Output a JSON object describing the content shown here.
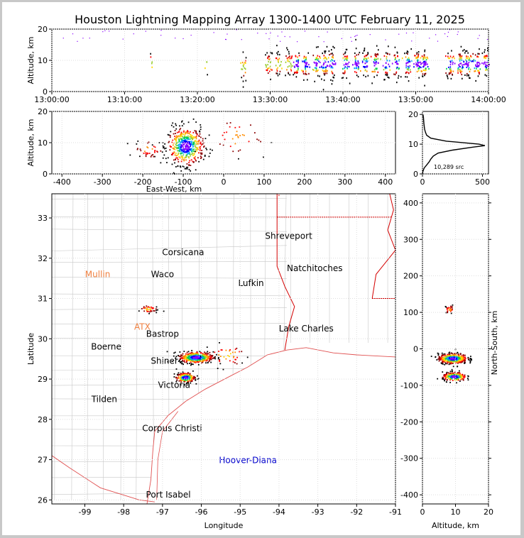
{
  "title": "Houston Lightning Mapping Array 1300-1400 UTC February 11, 2025",
  "colors": {
    "density": [
      "#8a00ff",
      "#0000ff",
      "#00a0ff",
      "#00d050",
      "#9acd32",
      "#ffd700",
      "#ff8c00",
      "#ff0000",
      "#8b0000",
      "#000000"
    ],
    "state_border": "#d40000",
    "coast": "#e05050",
    "county": "#c8c8c8",
    "grid": "#dddddd",
    "special_city": "#f08040",
    "highlight_city": "#0000cc"
  },
  "chart_data": [
    {
      "name": "altitude-time",
      "type": "scatter",
      "xlabel": "",
      "ylabel": "Altitude, km",
      "x_ticks": [
        "13:00:00",
        "13:10:00",
        "13:20:00",
        "13:30:00",
        "13:40:00",
        "13:50:00",
        "14:00:00"
      ],
      "x_range_minutes": [
        0,
        60
      ],
      "ylim": [
        0,
        20
      ],
      "y_ticks": [
        0,
        10,
        20
      ],
      "activity_bursts_minutes": [
        {
          "t": 13.6,
          "alt": 9,
          "n": 5
        },
        {
          "t": 21.5,
          "alt": 9,
          "n": 4
        },
        {
          "t": 26.3,
          "alt": 8,
          "n": 20
        },
        {
          "t": 29.8,
          "alt": 9,
          "n": 30
        },
        {
          "t": 31.0,
          "alt": 9,
          "n": 25
        },
        {
          "t": 32.5,
          "alt": 9,
          "n": 30
        },
        {
          "t": 33.5,
          "alt": 9,
          "n": 35
        },
        {
          "t": 34.8,
          "alt": 9,
          "n": 40
        },
        {
          "t": 36.3,
          "alt": 9,
          "n": 40
        },
        {
          "t": 37.5,
          "alt": 9,
          "n": 45
        },
        {
          "t": 38.5,
          "alt": 9,
          "n": 35
        },
        {
          "t": 40.3,
          "alt": 9,
          "n": 40
        },
        {
          "t": 41.8,
          "alt": 9,
          "n": 40
        },
        {
          "t": 43.0,
          "alt": 9,
          "n": 40
        },
        {
          "t": 44.5,
          "alt": 9,
          "n": 40
        },
        {
          "t": 46.0,
          "alt": 9,
          "n": 35
        },
        {
          "t": 47.3,
          "alt": 9,
          "n": 40
        },
        {
          "t": 48.8,
          "alt": 9,
          "n": 40
        },
        {
          "t": 50.2,
          "alt": 9,
          "n": 45
        },
        {
          "t": 51.2,
          "alt": 9,
          "n": 55
        },
        {
          "t": 54.7,
          "alt": 9,
          "n": 40
        },
        {
          "t": 56.0,
          "alt": 9,
          "n": 40
        },
        {
          "t": 57.0,
          "alt": 9,
          "n": 45
        },
        {
          "t": 58.3,
          "alt": 9,
          "n": 40
        },
        {
          "t": 59.6,
          "alt": 9,
          "n": 35
        }
      ]
    },
    {
      "name": "altitude-eastwest",
      "type": "scatter",
      "xlabel": "East-West, km",
      "ylabel": "Altitude, km",
      "xlim": [
        -425,
        425
      ],
      "x_ticks": [
        -400,
        -300,
        -200,
        -100,
        0,
        100,
        200,
        300,
        400
      ],
      "ylim": [
        0,
        20
      ],
      "y_ticks": [
        0,
        10,
        20
      ],
      "clusters": [
        {
          "x": -95,
          "alt": 9,
          "sx": 22,
          "sy": 3,
          "n": 500
        },
        {
          "x": -185,
          "alt": 8,
          "sx": 18,
          "sy": 1.5,
          "n": 40
        },
        {
          "x": 30,
          "alt": 12,
          "sx": 40,
          "sy": 3,
          "n": 35
        }
      ]
    },
    {
      "name": "altitude-histogram",
      "type": "line",
      "xlabel": "",
      "ylabel": "",
      "xlim": [
        0,
        550
      ],
      "x_ticks": [
        0,
        500
      ],
      "ylim": [
        0,
        21
      ],
      "y_ticks": [
        0,
        10,
        20
      ],
      "annotation": "10,289 src",
      "profile": [
        {
          "alt": 0,
          "n": 0
        },
        {
          "alt": 1,
          "n": 5
        },
        {
          "alt": 2,
          "n": 15
        },
        {
          "alt": 3,
          "n": 35
        },
        {
          "alt": 4,
          "n": 55
        },
        {
          "alt": 5,
          "n": 70
        },
        {
          "alt": 6,
          "n": 90
        },
        {
          "alt": 7,
          "n": 130
        },
        {
          "alt": 8,
          "n": 250
        },
        {
          "alt": 9,
          "n": 420
        },
        {
          "alt": 9.5,
          "n": 520
        },
        {
          "alt": 10,
          "n": 470
        },
        {
          "alt": 11,
          "n": 200
        },
        {
          "alt": 12,
          "n": 70
        },
        {
          "alt": 13,
          "n": 35
        },
        {
          "alt": 14,
          "n": 25
        },
        {
          "alt": 15,
          "n": 18
        },
        {
          "alt": 16,
          "n": 15
        },
        {
          "alt": 17,
          "n": 12
        },
        {
          "alt": 18,
          "n": 10
        },
        {
          "alt": 19,
          "n": 8
        },
        {
          "alt": 20,
          "n": 5
        }
      ]
    },
    {
      "name": "plan-view-map",
      "type": "scatter",
      "xlabel": "Longitude",
      "ylabel": "Latitude",
      "xlim": [
        -99.85,
        -91.0
      ],
      "x_ticks": [
        -99,
        -98,
        -97,
        -96,
        -95,
        -94,
        -93,
        -92,
        -91
      ],
      "ylim": [
        25.9,
        33.6
      ],
      "y_ticks": [
        26,
        27,
        28,
        29,
        30,
        31,
        32,
        33
      ],
      "cities": [
        {
          "name": "Shreveport",
          "lon": -93.75,
          "lat": 32.55,
          "style": "normal"
        },
        {
          "name": "Corsicana",
          "lon": -96.47,
          "lat": 32.15,
          "style": "normal"
        },
        {
          "name": "Mullin",
          "lon": -98.67,
          "lat": 31.6,
          "style": "special"
        },
        {
          "name": "Waco",
          "lon": -97.0,
          "lat": 31.6,
          "style": "normal"
        },
        {
          "name": "Natchitoches",
          "lon": -93.08,
          "lat": 31.75,
          "style": "normal"
        },
        {
          "name": "Lufkin",
          "lon": -94.72,
          "lat": 31.38,
          "style": "normal"
        },
        {
          "name": "ATX",
          "lon": -97.52,
          "lat": 30.3,
          "style": "special"
        },
        {
          "name": "Bastrop",
          "lon": -97.0,
          "lat": 30.12,
          "style": "normal"
        },
        {
          "name": "Lake Charles",
          "lon": -93.3,
          "lat": 30.25,
          "style": "normal"
        },
        {
          "name": "Boerne",
          "lon": -98.45,
          "lat": 29.8,
          "style": "normal"
        },
        {
          "name": "Shiner",
          "lon": -96.95,
          "lat": 29.45,
          "style": "normal"
        },
        {
          "name": "Victoria",
          "lon": -96.7,
          "lat": 28.85,
          "style": "normal"
        },
        {
          "name": "Tilden",
          "lon": -98.5,
          "lat": 28.5,
          "style": "normal"
        },
        {
          "name": "Corpus Christi",
          "lon": -96.75,
          "lat": 27.78,
          "style": "normal"
        },
        {
          "name": "Hoover-Diana",
          "lon": -94.8,
          "lat": 26.98,
          "style": "highlight"
        },
        {
          "name": "Port Isabel",
          "lon": -96.85,
          "lat": 26.13,
          "style": "normal"
        }
      ],
      "clusters": [
        {
          "lon": -96.15,
          "lat": 29.55,
          "sx": 0.22,
          "sy": 0.07,
          "n": 450
        },
        {
          "lon": -96.42,
          "lat": 29.05,
          "sx": 0.12,
          "sy": 0.06,
          "n": 220
        },
        {
          "lon": -97.38,
          "lat": 30.75,
          "sx": 0.12,
          "sy": 0.05,
          "n": 40
        },
        {
          "lon": -95.35,
          "lat": 29.6,
          "sx": 0.3,
          "sy": 0.15,
          "n": 40
        }
      ]
    },
    {
      "name": "northsouth-altitude",
      "type": "scatter",
      "xlabel": "Altitude, km",
      "ylabel": "North-South, km",
      "xlim": [
        0,
        20
      ],
      "x_ticks": [
        0,
        10,
        20
      ],
      "ylim": [
        -425,
        425
      ],
      "y_ticks": [
        -400,
        -300,
        -200,
        -100,
        0,
        100,
        200,
        300,
        400
      ],
      "clusters": [
        {
          "alt": 9,
          "ns": -25,
          "sx": 2.2,
          "sy": 7,
          "n": 420
        },
        {
          "alt": 9.5,
          "ns": -75,
          "sx": 1.8,
          "sy": 6,
          "n": 240
        },
        {
          "alt": 8,
          "ns": 110,
          "sx": 0.7,
          "sy": 6,
          "n": 30
        }
      ]
    }
  ]
}
